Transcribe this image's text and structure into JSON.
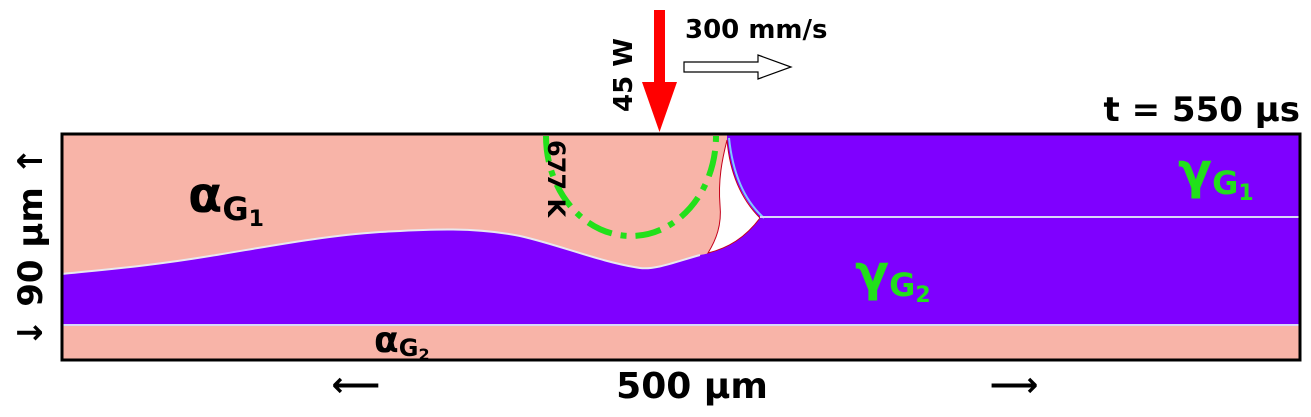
{
  "annotations": {
    "time": "t = 550 µs",
    "speed": "300 mm/s",
    "power": "45 W",
    "isotherm": "677 K",
    "width": "500 µm",
    "width_left_arrow": "⟵",
    "width_right_arrow": "⟶",
    "height": "↓ 90 µm ↑"
  },
  "phases": {
    "alpha_main": "α",
    "alpha_g1_sub": "G",
    "alpha_g1_subsub": "1",
    "alpha_g2_sub": "G",
    "alpha_g2_subsub": "2",
    "gamma_main": "γ",
    "gamma_g1_sub": "G",
    "gamma_g1_subsub": "1",
    "gamma_g2_sub": "G",
    "gamma_g2_subsub": "2"
  },
  "colors": {
    "alpha": "#f8b4a8",
    "gamma": "#7f00ff",
    "laser": "#ff0000",
    "isotherm": "#22e01a",
    "gamma_label": "#22e01a",
    "text": "#000000"
  }
}
